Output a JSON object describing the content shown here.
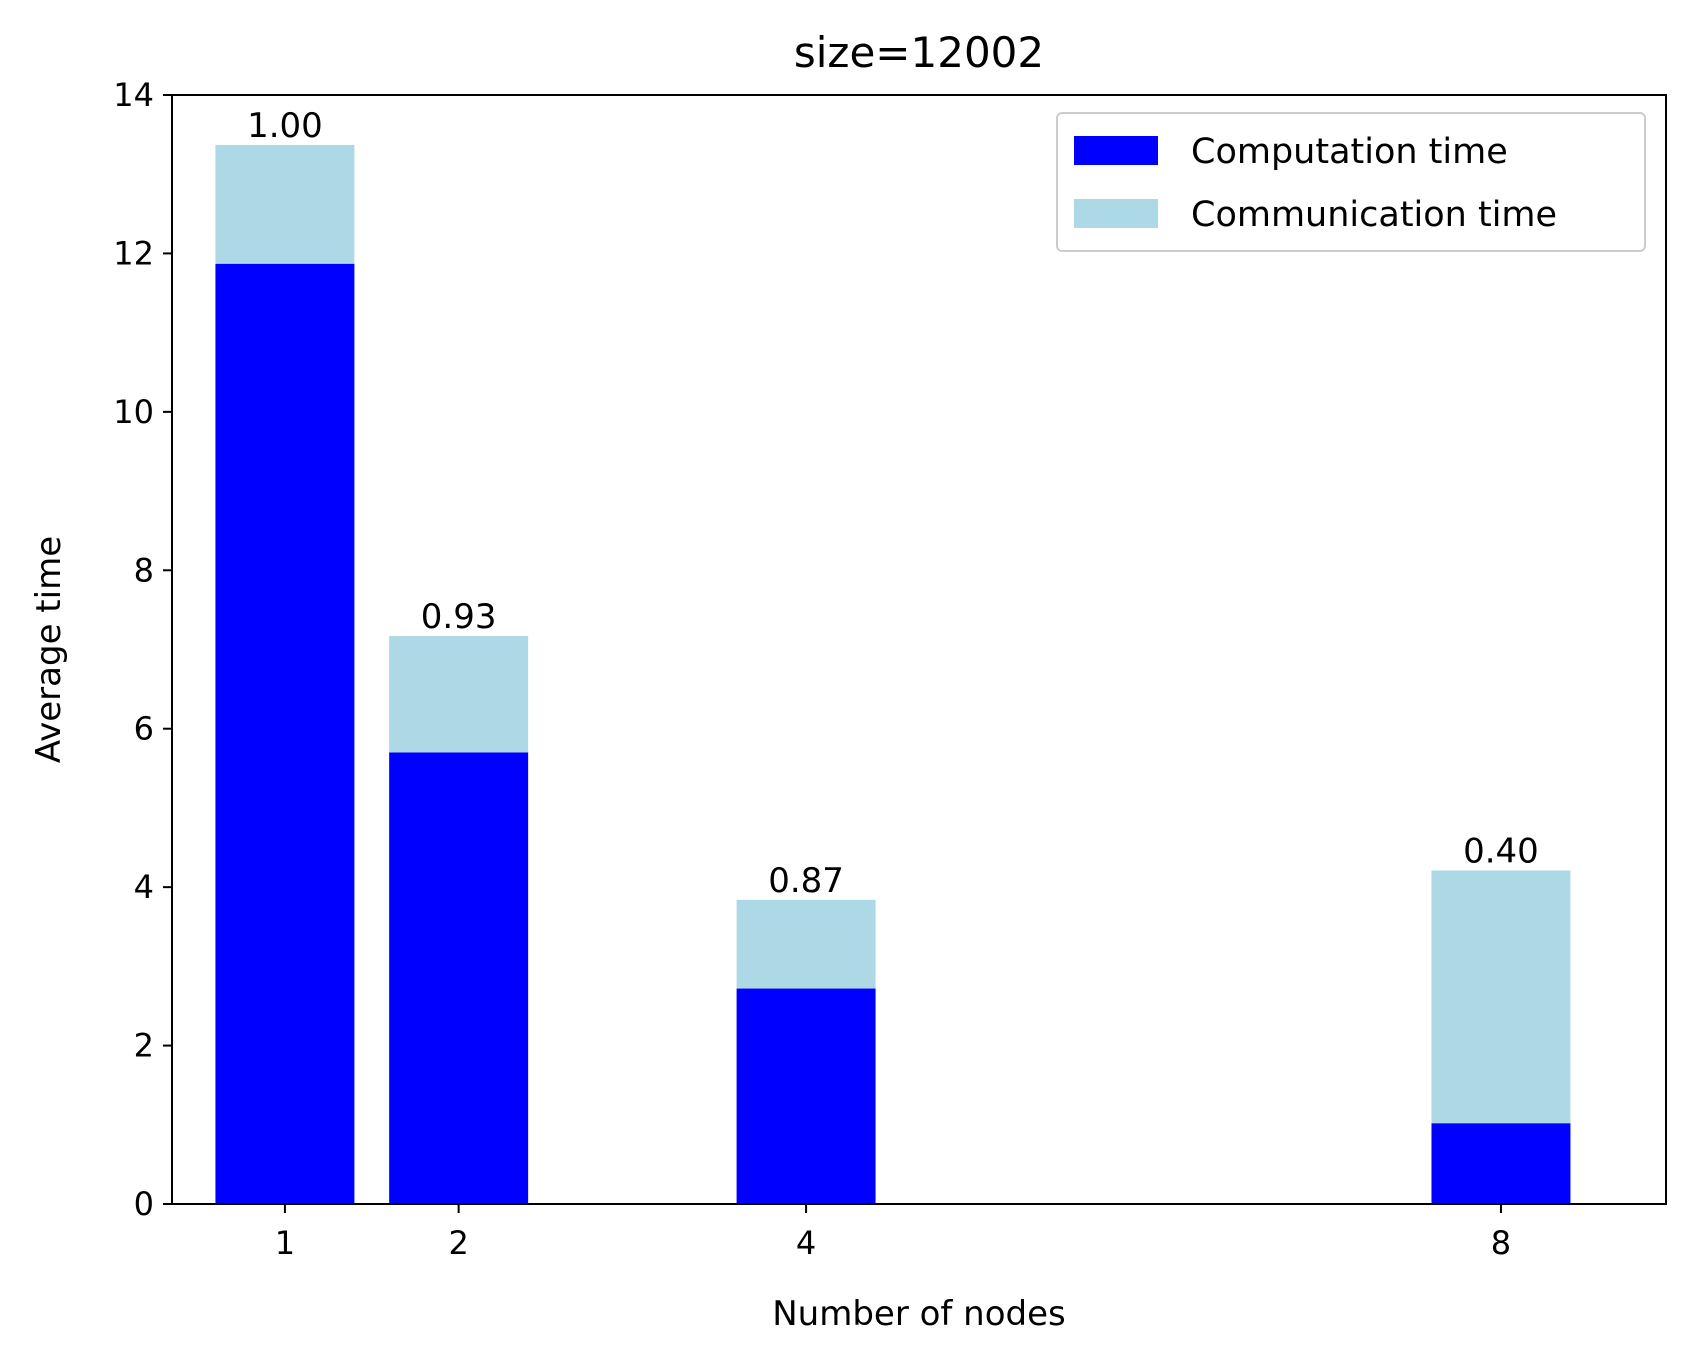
{
  "chart_data": {
    "type": "bar",
    "stacked": true,
    "title": "size=12002",
    "xlabel": "Number of nodes",
    "ylabel": "Average time",
    "categories": [
      1,
      2,
      4,
      8
    ],
    "x_tick_labels": [
      "1",
      "2",
      "4",
      "8"
    ],
    "bar_width": 0.8,
    "xlim": [
      0.35,
      8.95
    ],
    "ylim": [
      0,
      14
    ],
    "y_ticks": [
      0,
      2,
      4,
      6,
      8,
      10,
      12,
      14
    ],
    "y_tick_labels": [
      "0",
      "2",
      "4",
      "6",
      "8",
      "10",
      "12",
      "14"
    ],
    "grid": false,
    "legend_position": "top-right",
    "series": [
      {
        "name": "Computation time",
        "color": "#0000ff",
        "values": [
          11.87,
          5.7,
          2.72,
          1.02
        ]
      },
      {
        "name": "Communication time",
        "color": "#add8e6",
        "values": [
          1.5,
          1.47,
          1.12,
          3.19
        ]
      }
    ],
    "bar_labels": [
      "1.00",
      "0.93",
      "0.87",
      "0.40"
    ]
  }
}
